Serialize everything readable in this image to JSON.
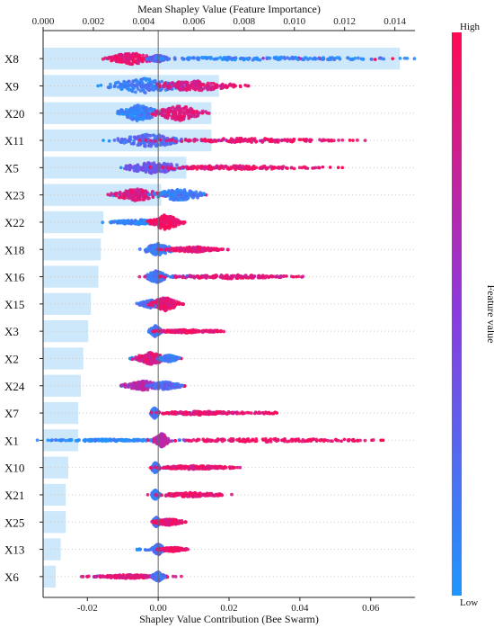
{
  "chart_data": {
    "type": "bar+beeswarm",
    "top_axis": {
      "label": "Mean Shapley Value (Feature Importance)",
      "ticks": [
        "0.000",
        "0.002",
        "0.004",
        "0.006",
        "0.008",
        "0.010",
        "0.012",
        "0.014"
      ],
      "range": [
        0,
        0.0148
      ]
    },
    "bottom_axis": {
      "label": "Shapley Value Contribution (Bee Swarm)",
      "ticks": [
        "-0.02",
        "0.00",
        "0.02",
        "0.04",
        "0.06"
      ],
      "range": [
        -0.0325,
        0.0725
      ]
    },
    "colorbar": {
      "label": "Feature value",
      "high": "High",
      "low": "Low",
      "high_color": "#ff0a54",
      "low_color": "#1e96ff"
    },
    "bar_color": "#cde8fb",
    "features": [
      "X8",
      "X9",
      "X20",
      "X11",
      "X5",
      "X23",
      "X22",
      "X18",
      "X16",
      "X15",
      "X3",
      "X2",
      "X24",
      "X7",
      "X1",
      "X10",
      "X21",
      "X25",
      "X13",
      "X6"
    ],
    "importance": [
      0.0142,
      0.007,
      0.0067,
      0.0067,
      0.0057,
      0.0047,
      0.0024,
      0.0023,
      0.0022,
      0.0019,
      0.0018,
      0.0016,
      0.0015,
      0.0014,
      0.0014,
      0.001,
      0.0009,
      0.0009,
      0.0007,
      0.0005
    ],
    "swarm": [
      {
        "min": -0.0145,
        "max": 0.0662,
        "clusters": [
          {
            "x": -0.0075,
            "w": 0.012,
            "h": 0.45,
            "c": 0.9
          },
          {
            "x": 0.0,
            "w": 0.005,
            "h": 0.25,
            "c": 0.3
          },
          {
            "x": 0.03,
            "w": 0.07,
            "h": 0.12,
            "c": 0.08
          }
        ]
      },
      {
        "min": -0.017,
        "max": 0.0255,
        "clusters": [
          {
            "x": -0.004,
            "w": 0.018,
            "h": 0.55,
            "c": 0.15
          },
          {
            "x": 0.01,
            "w": 0.02,
            "h": 0.4,
            "c": 0.85
          }
        ]
      },
      {
        "min": -0.011,
        "max": 0.0125,
        "clusters": [
          {
            "x": -0.0055,
            "w": 0.01,
            "h": 0.6,
            "c": 0.12
          },
          {
            "x": 0.006,
            "w": 0.012,
            "h": 0.55,
            "c": 0.85
          }
        ]
      },
      {
        "min": -0.0155,
        "max": 0.055,
        "clusters": [
          {
            "x": -0.002,
            "w": 0.016,
            "h": 0.5,
            "c": 0.25
          },
          {
            "x": 0.025,
            "w": 0.05,
            "h": 0.16,
            "c": 0.9
          }
        ]
      },
      {
        "min": -0.0105,
        "max": 0.052,
        "clusters": [
          {
            "x": -0.001,
            "w": 0.014,
            "h": 0.45,
            "c": 0.35
          },
          {
            "x": 0.02,
            "w": 0.04,
            "h": 0.16,
            "c": 0.9
          }
        ]
      },
      {
        "min": -0.013,
        "max": 0.0135,
        "clusters": [
          {
            "x": -0.006,
            "w": 0.012,
            "h": 0.45,
            "c": 0.85
          },
          {
            "x": 0.006,
            "w": 0.012,
            "h": 0.45,
            "c": 0.15
          }
        ]
      },
      {
        "min": -0.0135,
        "max": 0.0075,
        "clusters": [
          {
            "x": -0.005,
            "w": 0.015,
            "h": 0.18,
            "c": 0.1
          },
          {
            "x": 0.002,
            "w": 0.008,
            "h": 0.55,
            "c": 0.95
          }
        ]
      },
      {
        "min": -0.0035,
        "max": 0.018,
        "clusters": [
          {
            "x": 0.0,
            "w": 0.007,
            "h": 0.45,
            "c": 0.15
          },
          {
            "x": 0.01,
            "w": 0.015,
            "h": 0.2,
            "c": 0.9
          }
        ]
      },
      {
        "min": -0.0025,
        "max": 0.039,
        "clusters": [
          {
            "x": -0.0005,
            "w": 0.005,
            "h": 0.45,
            "c": 0.2
          },
          {
            "x": 0.02,
            "w": 0.035,
            "h": 0.14,
            "c": 0.85
          }
        ]
      },
      {
        "min": -0.0055,
        "max": 0.007,
        "clusters": [
          {
            "x": -0.002,
            "w": 0.006,
            "h": 0.3,
            "c": 0.2
          },
          {
            "x": 0.002,
            "w": 0.007,
            "h": 0.5,
            "c": 0.9
          }
        ]
      },
      {
        "min": -0.002,
        "max": 0.0175,
        "clusters": [
          {
            "x": -0.0008,
            "w": 0.003,
            "h": 0.4,
            "c": 0.15
          },
          {
            "x": 0.008,
            "w": 0.016,
            "h": 0.12,
            "c": 0.9
          }
        ]
      },
      {
        "min": -0.008,
        "max": 0.0065,
        "clusters": [
          {
            "x": -0.002,
            "w": 0.008,
            "h": 0.45,
            "c": 0.85
          },
          {
            "x": 0.003,
            "w": 0.005,
            "h": 0.25,
            "c": 0.15
          }
        ]
      },
      {
        "min": -0.0105,
        "max": 0.0075,
        "clusters": [
          {
            "x": -0.004,
            "w": 0.01,
            "h": 0.35,
            "c": 0.7
          },
          {
            "x": 0.002,
            "w": 0.008,
            "h": 0.3,
            "c": 0.25
          }
        ]
      },
      {
        "min": -0.002,
        "max": 0.0335,
        "clusters": [
          {
            "x": -0.001,
            "w": 0.002,
            "h": 0.4,
            "c": 0.15
          },
          {
            "x": 0.012,
            "w": 0.025,
            "h": 0.14,
            "c": 0.9
          }
        ]
      },
      {
        "min": -0.028,
        "max": 0.0635,
        "clusters": [
          {
            "x": -0.013,
            "w": 0.03,
            "h": 0.08,
            "c": 0.08
          },
          {
            "x": 0.001,
            "w": 0.004,
            "h": 0.5,
            "c": 0.7
          },
          {
            "x": 0.03,
            "w": 0.06,
            "h": 0.12,
            "c": 0.95
          }
        ]
      },
      {
        "min": -0.0015,
        "max": 0.0215,
        "clusters": [
          {
            "x": -0.0008,
            "w": 0.002,
            "h": 0.4,
            "c": 0.15
          },
          {
            "x": 0.01,
            "w": 0.02,
            "h": 0.14,
            "c": 0.9
          }
        ]
      },
      {
        "min": -0.0015,
        "max": 0.0175,
        "clusters": [
          {
            "x": -0.0008,
            "w": 0.002,
            "h": 0.35,
            "c": 0.15
          },
          {
            "x": 0.009,
            "w": 0.017,
            "h": 0.16,
            "c": 0.9
          }
        ]
      },
      {
        "min": -0.0015,
        "max": 0.0065,
        "clusters": [
          {
            "x": -0.0005,
            "w": 0.002,
            "h": 0.35,
            "c": 0.2
          },
          {
            "x": 0.003,
            "w": 0.007,
            "h": 0.25,
            "c": 0.9
          }
        ]
      },
      {
        "min": -0.006,
        "max": 0.008,
        "clusters": [
          {
            "x": 0.0,
            "w": 0.003,
            "h": 0.4,
            "c": 0.2
          },
          {
            "x": 0.004,
            "w": 0.007,
            "h": 0.16,
            "c": 0.9
          }
        ]
      },
      {
        "min": -0.018,
        "max": 0.0025,
        "clusters": [
          {
            "x": -0.008,
            "w": 0.02,
            "h": 0.14,
            "c": 0.85
          },
          {
            "x": 0.0,
            "w": 0.003,
            "h": 0.35,
            "c": 0.2
          }
        ]
      }
    ]
  }
}
